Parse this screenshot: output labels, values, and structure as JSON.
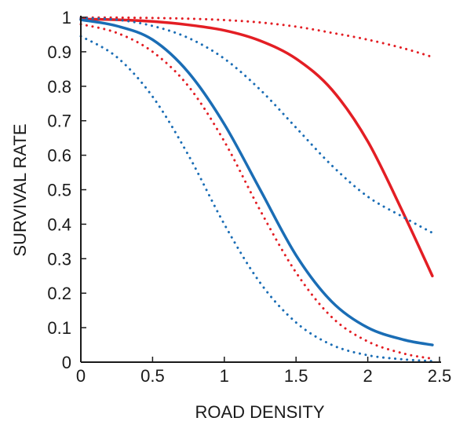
{
  "chart_data": {
    "type": "line",
    "xlabel": "ROAD DENSITY",
    "ylabel": "SURVIVAL RATE",
    "xlim": [
      0,
      2.5
    ],
    "ylim": [
      0,
      1
    ],
    "x_ticks": [
      "0",
      "0.5",
      "1",
      "1.5",
      "2",
      "2.5"
    ],
    "y_ticks": [
      "0",
      "0.1",
      "0.2",
      "0.3",
      "0.4",
      "0.5",
      "0.6",
      "0.7",
      "0.8",
      "0.9",
      "1"
    ],
    "grid": false,
    "legend": "none",
    "x": [
      0,
      0.25,
      0.5,
      0.75,
      1.0,
      1.25,
      1.5,
      1.75,
      2.0,
      2.25,
      2.45
    ],
    "series": [
      {
        "color": "#e31e24",
        "style": "solid",
        "values": [
          0.995,
          0.993,
          0.988,
          0.978,
          0.962,
          0.932,
          0.88,
          0.79,
          0.64,
          0.43,
          0.25
        ]
      },
      {
        "color": "#e31e24",
        "style": "dotted",
        "values": [
          0.999,
          0.999,
          0.998,
          0.996,
          0.992,
          0.985,
          0.973,
          0.955,
          0.935,
          0.91,
          0.885
        ]
      },
      {
        "color": "#e31e24",
        "style": "dotted",
        "values": [
          0.98,
          0.955,
          0.9,
          0.8,
          0.64,
          0.44,
          0.26,
          0.13,
          0.06,
          0.025,
          0.01
        ]
      },
      {
        "color": "#1a6db5",
        "style": "solid",
        "values": [
          0.993,
          0.975,
          0.935,
          0.84,
          0.69,
          0.5,
          0.31,
          0.175,
          0.1,
          0.065,
          0.05
        ]
      },
      {
        "color": "#1a6db5",
        "style": "dotted",
        "values": [
          0.998,
          0.993,
          0.975,
          0.94,
          0.88,
          0.79,
          0.68,
          0.57,
          0.48,
          0.42,
          0.375
        ]
      },
      {
        "color": "#1a6db5",
        "style": "dotted",
        "values": [
          0.945,
          0.885,
          0.77,
          0.6,
          0.4,
          0.23,
          0.115,
          0.05,
          0.02,
          0.008,
          0.003
        ]
      }
    ]
  }
}
